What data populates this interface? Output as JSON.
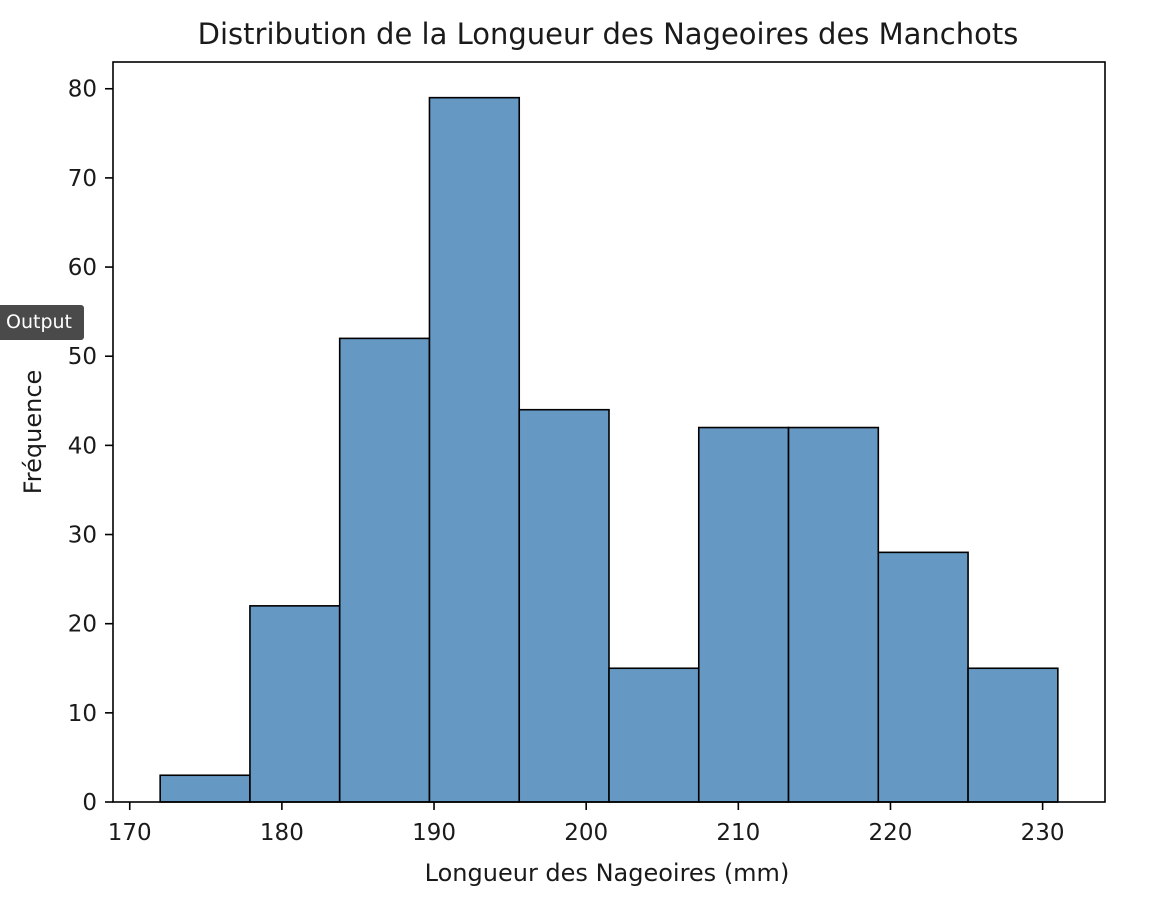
{
  "output_badge": {
    "label": "Output"
  },
  "chart_data": {
    "type": "bar",
    "title": "Distribution de la Longueur des Nageoires des Manchots",
    "xlabel": "Longueur des Nageoires (mm)",
    "ylabel": "Fréquence",
    "bin_edges": [
      172,
      177.9,
      183.8,
      189.7,
      195.6,
      201.5,
      207.4,
      213.3,
      219.2,
      225.1,
      231
    ],
    "values": [
      3,
      22,
      52,
      79,
      44,
      15,
      42,
      42,
      28,
      15
    ],
    "xlim": [
      168.9,
      234.1
    ],
    "ylim": [
      0,
      83
    ],
    "xticks": [
      170,
      180,
      190,
      200,
      210,
      220,
      230
    ],
    "yticks": [
      0,
      10,
      20,
      30,
      40,
      50,
      60,
      70,
      80
    ],
    "bar_color": "#6599c4",
    "edge_color": "#000000",
    "grid": false
  }
}
